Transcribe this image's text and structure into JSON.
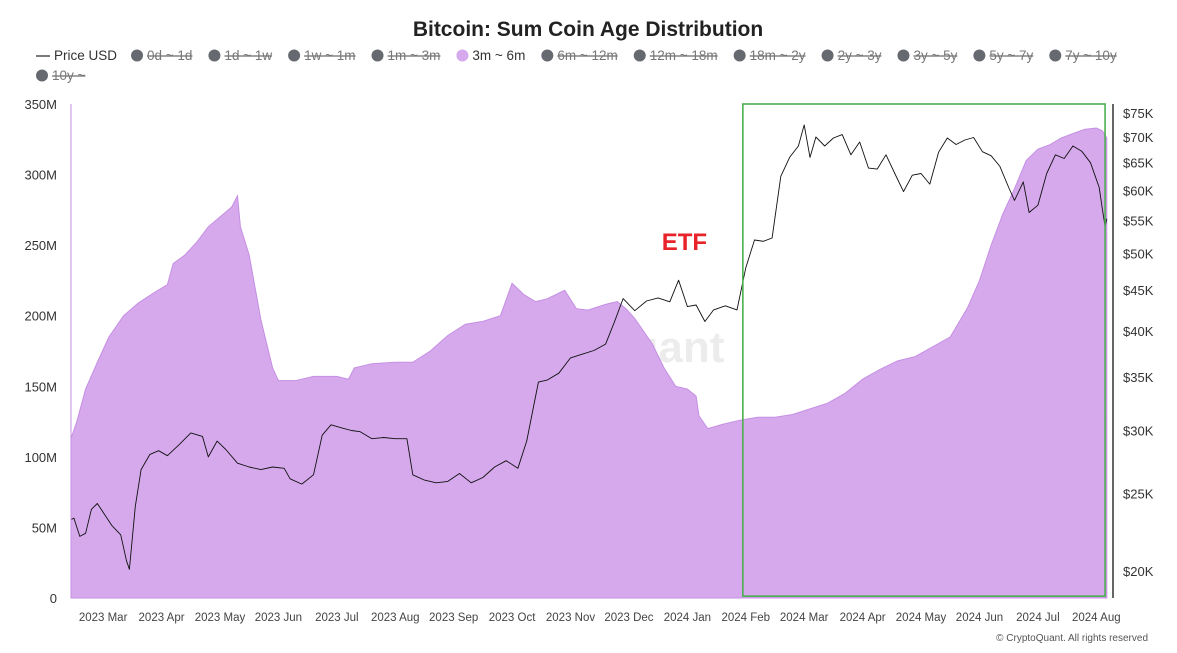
{
  "chart_data": {
    "type": "area",
    "title": "Bitcoin: Sum Coin Age Distribution",
    "legend": [
      {
        "label": "Price USD",
        "kind": "line",
        "active": true
      },
      {
        "label": "0d ~ 1d",
        "kind": "dot",
        "active": false
      },
      {
        "label": "1d ~ 1w",
        "kind": "dot",
        "active": false
      },
      {
        "label": "1w ~ 1m",
        "kind": "dot",
        "active": false
      },
      {
        "label": "1m ~ 3m",
        "kind": "dot",
        "active": false
      },
      {
        "label": "3m ~ 6m",
        "kind": "dot",
        "active": true
      },
      {
        "label": "6m ~ 12m",
        "kind": "dot",
        "active": false
      },
      {
        "label": "12m ~ 18m",
        "kind": "dot",
        "active": false
      },
      {
        "label": "18m ~ 2y",
        "kind": "dot",
        "active": false
      },
      {
        "label": "2y ~ 3y",
        "kind": "dot",
        "active": false
      },
      {
        "label": "3y ~ 5y",
        "kind": "dot",
        "active": false
      },
      {
        "label": "5y ~ 7y",
        "kind": "dot",
        "active": false
      },
      {
        "label": "7y ~ 10y",
        "kind": "dot",
        "active": false
      },
      {
        "label": "10y ~",
        "kind": "dot",
        "active": false
      }
    ],
    "x_tick_labels": [
      "2023 Mar",
      "2023 Apr",
      "2023 May",
      "2023 Jun",
      "2023 Jul",
      "2023 Aug",
      "2023 Sep",
      "2023 Oct",
      "2023 Nov",
      "2023 Dec",
      "2024 Jan",
      "2024 Feb",
      "2024 Mar",
      "2024 Apr",
      "2024 May",
      "2024 Jun",
      "2024 Jul",
      "2024 Aug"
    ],
    "x_tick_months": [
      1,
      2,
      3,
      4,
      5,
      6,
      7,
      8,
      9,
      10,
      11,
      12,
      13,
      14,
      15,
      16,
      17,
      18
    ],
    "x_range_months": [
      0.45,
      18.2
    ],
    "y_left": {
      "ticks": [
        "0",
        "50M",
        "100M",
        "150M",
        "200M",
        "250M",
        "300M",
        "350M"
      ],
      "values": [
        0,
        50,
        100,
        150,
        200,
        250,
        300,
        350
      ],
      "range": [
        0,
        350
      ],
      "unit": "M"
    },
    "y_right": {
      "ticks": [
        "$20K",
        "$25K",
        "$30K",
        "$35K",
        "$40K",
        "$45K",
        "$50K",
        "$55K",
        "$60K",
        "$65K",
        "$70K",
        "$75K"
      ],
      "values": [
        20,
        25,
        30,
        35,
        40,
        45,
        50,
        55,
        60,
        65,
        70,
        75
      ],
      "range": [
        18.5,
        77
      ],
      "scale": "log",
      "unit": "K USD"
    },
    "series": [
      {
        "name": "3m ~ 6m",
        "color": "#d6a9ec",
        "axis": "left",
        "points": [
          [
            0.45,
            113
          ],
          [
            0.55,
            125
          ],
          [
            0.7,
            148
          ],
          [
            0.9,
            167
          ],
          [
            1.1,
            185
          ],
          [
            1.35,
            200
          ],
          [
            1.6,
            209
          ],
          [
            1.9,
            217
          ],
          [
            2.1,
            222
          ],
          [
            2.2,
            237
          ],
          [
            2.4,
            243
          ],
          [
            2.6,
            252
          ],
          [
            2.8,
            263
          ],
          [
            3.0,
            270
          ],
          [
            3.2,
            277
          ],
          [
            3.3,
            285
          ],
          [
            3.35,
            263
          ],
          [
            3.5,
            243
          ],
          [
            3.7,
            197
          ],
          [
            3.9,
            163
          ],
          [
            4.0,
            154
          ],
          [
            4.3,
            154
          ],
          [
            4.6,
            157
          ],
          [
            5.0,
            157
          ],
          [
            5.2,
            155
          ],
          [
            5.3,
            163
          ],
          [
            5.6,
            166
          ],
          [
            6.0,
            167
          ],
          [
            6.3,
            167
          ],
          [
            6.6,
            175
          ],
          [
            6.9,
            186
          ],
          [
            7.2,
            194
          ],
          [
            7.5,
            196
          ],
          [
            7.8,
            200
          ],
          [
            8.0,
            223
          ],
          [
            8.2,
            215
          ],
          [
            8.4,
            210
          ],
          [
            8.6,
            212
          ],
          [
            8.9,
            218
          ],
          [
            9.1,
            205
          ],
          [
            9.3,
            204
          ],
          [
            9.6,
            208
          ],
          [
            9.8,
            210
          ],
          [
            9.95,
            205
          ],
          [
            10.1,
            198
          ],
          [
            10.4,
            180
          ],
          [
            10.6,
            163
          ],
          [
            10.8,
            150
          ],
          [
            11.0,
            148
          ],
          [
            11.15,
            143
          ],
          [
            11.2,
            129
          ],
          [
            11.35,
            120
          ],
          [
            11.6,
            123
          ],
          [
            11.9,
            126
          ],
          [
            12.2,
            128
          ],
          [
            12.5,
            128
          ],
          [
            12.8,
            130
          ],
          [
            13.1,
            134
          ],
          [
            13.4,
            138
          ],
          [
            13.7,
            145
          ],
          [
            14.0,
            155
          ],
          [
            14.3,
            162
          ],
          [
            14.6,
            168
          ],
          [
            14.9,
            171
          ],
          [
            15.2,
            178
          ],
          [
            15.5,
            185
          ],
          [
            15.8,
            206
          ],
          [
            16.0,
            225
          ],
          [
            16.2,
            250
          ],
          [
            16.4,
            272
          ],
          [
            16.6,
            290
          ],
          [
            16.8,
            310
          ],
          [
            17.0,
            318
          ],
          [
            17.2,
            321
          ],
          [
            17.4,
            326
          ],
          [
            17.6,
            329
          ],
          [
            17.8,
            332
          ],
          [
            18.0,
            333
          ],
          [
            18.1,
            331
          ],
          [
            18.18,
            326
          ]
        ]
      },
      {
        "name": "Price USD",
        "color": "#111111",
        "axis": "right",
        "points": [
          [
            0.45,
            23.2
          ],
          [
            0.5,
            23.3
          ],
          [
            0.6,
            22.1
          ],
          [
            0.7,
            22.3
          ],
          [
            0.8,
            23.9
          ],
          [
            0.9,
            24.3
          ],
          [
            1.0,
            23.7
          ],
          [
            1.15,
            22.8
          ],
          [
            1.3,
            22.2
          ],
          [
            1.4,
            20.6
          ],
          [
            1.45,
            20.1
          ],
          [
            1.55,
            24.1
          ],
          [
            1.65,
            26.8
          ],
          [
            1.8,
            28.0
          ],
          [
            1.95,
            28.3
          ],
          [
            2.1,
            27.9
          ],
          [
            2.3,
            28.8
          ],
          [
            2.5,
            29.8
          ],
          [
            2.7,
            29.5
          ],
          [
            2.8,
            27.8
          ],
          [
            2.95,
            29.1
          ],
          [
            3.1,
            28.4
          ],
          [
            3.3,
            27.3
          ],
          [
            3.5,
            27.0
          ],
          [
            3.7,
            26.8
          ],
          [
            3.9,
            27.0
          ],
          [
            4.1,
            26.9
          ],
          [
            4.2,
            26.1
          ],
          [
            4.4,
            25.7
          ],
          [
            4.6,
            26.4
          ],
          [
            4.75,
            29.6
          ],
          [
            4.9,
            30.5
          ],
          [
            5.1,
            30.2
          ],
          [
            5.25,
            30.0
          ],
          [
            5.4,
            29.9
          ],
          [
            5.6,
            29.3
          ],
          [
            5.8,
            29.4
          ],
          [
            6.0,
            29.3
          ],
          [
            6.2,
            29.3
          ],
          [
            6.3,
            26.4
          ],
          [
            6.5,
            26.0
          ],
          [
            6.7,
            25.8
          ],
          [
            6.9,
            25.9
          ],
          [
            7.1,
            26.5
          ],
          [
            7.3,
            25.8
          ],
          [
            7.5,
            26.2
          ],
          [
            7.7,
            27.0
          ],
          [
            7.9,
            27.5
          ],
          [
            8.1,
            26.9
          ],
          [
            8.25,
            29.1
          ],
          [
            8.45,
            34.5
          ],
          [
            8.6,
            34.7
          ],
          [
            8.8,
            35.4
          ],
          [
            9.0,
            37.0
          ],
          [
            9.2,
            37.4
          ],
          [
            9.4,
            37.8
          ],
          [
            9.6,
            38.5
          ],
          [
            9.75,
            41.0
          ],
          [
            9.9,
            43.9
          ],
          [
            10.1,
            42.4
          ],
          [
            10.3,
            43.6
          ],
          [
            10.5,
            44.0
          ],
          [
            10.7,
            43.5
          ],
          [
            10.85,
            46.3
          ],
          [
            11.0,
            42.9
          ],
          [
            11.15,
            43.1
          ],
          [
            11.3,
            41.1
          ],
          [
            11.45,
            42.5
          ],
          [
            11.65,
            43.0
          ],
          [
            11.85,
            42.5
          ],
          [
            12.0,
            48.0
          ],
          [
            12.15,
            52.0
          ],
          [
            12.3,
            51.8
          ],
          [
            12.45,
            52.3
          ],
          [
            12.6,
            62.5
          ],
          [
            12.75,
            66.0
          ],
          [
            12.9,
            68.2
          ],
          [
            13.0,
            72.5
          ],
          [
            13.1,
            66.0
          ],
          [
            13.2,
            70.0
          ],
          [
            13.35,
            68.2
          ],
          [
            13.5,
            69.8
          ],
          [
            13.65,
            70.5
          ],
          [
            13.8,
            66.5
          ],
          [
            13.95,
            69.0
          ],
          [
            14.1,
            64.0
          ],
          [
            14.25,
            63.8
          ],
          [
            14.4,
            66.5
          ],
          [
            14.55,
            63.0
          ],
          [
            14.7,
            59.8
          ],
          [
            14.85,
            62.7
          ],
          [
            15.0,
            63.0
          ],
          [
            15.15,
            61.1
          ],
          [
            15.3,
            67.0
          ],
          [
            15.45,
            69.8
          ],
          [
            15.6,
            68.5
          ],
          [
            15.75,
            69.4
          ],
          [
            15.9,
            69.9
          ],
          [
            16.05,
            67.1
          ],
          [
            16.2,
            66.3
          ],
          [
            16.35,
            64.3
          ],
          [
            16.5,
            60.5
          ],
          [
            16.6,
            58.3
          ],
          [
            16.75,
            61.5
          ],
          [
            16.85,
            56.3
          ],
          [
            17.0,
            57.5
          ],
          [
            17.15,
            63.0
          ],
          [
            17.3,
            66.5
          ],
          [
            17.45,
            65.8
          ],
          [
            17.6,
            68.2
          ],
          [
            17.75,
            67.2
          ],
          [
            17.9,
            65.0
          ],
          [
            18.05,
            60.5
          ],
          [
            18.1,
            57.0
          ],
          [
            18.15,
            54.1
          ],
          [
            18.18,
            55.3
          ]
        ]
      }
    ],
    "annotations": [
      {
        "text": "ETF",
        "color": "#e8232a"
      }
    ],
    "highlight_box": {
      "color": "#4caf50",
      "x_from_month": 11.95,
      "x_to_month": 18.15,
      "y_top_usd": 77,
      "y_bottom_usd": 18.6
    },
    "watermark": "CryptoQuant",
    "credit": "© CryptoQuant. All rights reserved",
    "grid": false
  }
}
